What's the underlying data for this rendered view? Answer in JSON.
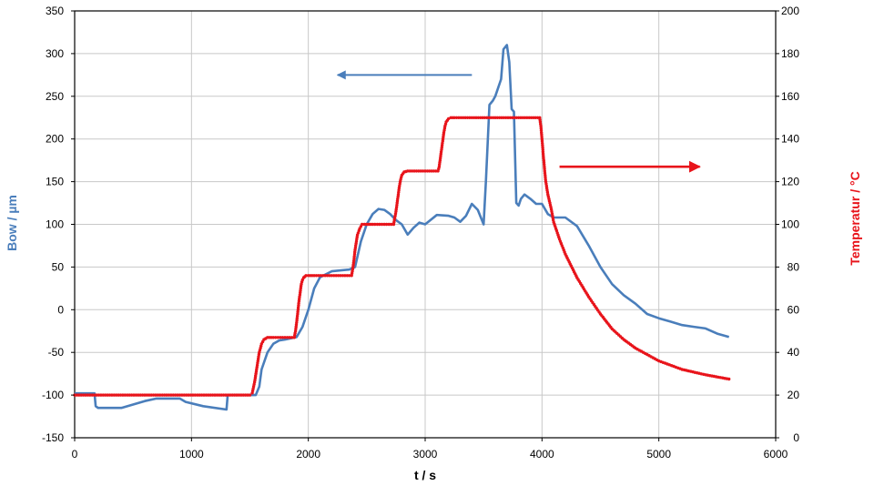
{
  "chart_data": {
    "type": "line",
    "title": "",
    "xlabel": "t / s",
    "ylabel": "Bow / µm",
    "y2label": "Temperatur / °C",
    "xlim": [
      0,
      6000
    ],
    "ylim": [
      -150,
      350
    ],
    "y2lim": [
      0,
      200
    ],
    "x_ticks": [
      0,
      1000,
      2000,
      3000,
      4000,
      5000,
      6000
    ],
    "y_ticks": [
      -150,
      -100,
      -50,
      0,
      50,
      100,
      150,
      200,
      250,
      300,
      350
    ],
    "y2_ticks": [
      0,
      20,
      40,
      60,
      80,
      100,
      120,
      140,
      160,
      180,
      200
    ],
    "grid": true,
    "legend": "none",
    "colors": {
      "bow": "#4a7ebb",
      "temperature": "#e8141b"
    },
    "annotations": [
      {
        "type": "arrow",
        "series": "bow",
        "direction": "left",
        "x_from": 3400,
        "x_to": 2250,
        "y": 275,
        "axis": "left"
      },
      {
        "type": "arrow",
        "series": "temperature",
        "direction": "right",
        "x_from": 4150,
        "x_to": 5350,
        "y": 127,
        "axis": "right"
      }
    ],
    "series": [
      {
        "axis": "left",
        "style": "line",
        "x": [
          0,
          170,
          180,
          200,
          400,
          600,
          700,
          900,
          950,
          1100,
          1300,
          1310,
          1320,
          1550,
          1580,
          1600,
          1650,
          1700,
          1750,
          1800,
          1900,
          1950,
          2000,
          2050,
          2100,
          2200,
          2350,
          2400,
          2450,
          2500,
          2550,
          2600,
          2650,
          2700,
          2750,
          2800,
          2850,
          2900,
          2950,
          3000,
          3100,
          3200,
          3250,
          3300,
          3350,
          3400,
          3450,
          3500,
          3520,
          3550,
          3580,
          3600,
          3650,
          3670,
          3700,
          3720,
          3740,
          3760,
          3780,
          3800,
          3820,
          3850,
          3900,
          3950,
          4000,
          4050,
          4100,
          4200,
          4300,
          4400,
          4500,
          4600,
          4700,
          4800,
          4900,
          5000,
          5100,
          5200,
          5300,
          5400,
          5500,
          5600
        ],
        "y": [
          -98,
          -98,
          -113,
          -115,
          -115,
          -107,
          -104,
          -104,
          -108,
          -113,
          -117,
          -100,
          -100,
          -100,
          -90,
          -70,
          -50,
          -40,
          -36,
          -35,
          -32,
          -20,
          0,
          25,
          38,
          45,
          47,
          50,
          80,
          100,
          112,
          118,
          117,
          112,
          105,
          100,
          88,
          96,
          102,
          100,
          111,
          110,
          108,
          103,
          110,
          124,
          117,
          100,
          150,
          240,
          245,
          250,
          270,
          305,
          310,
          290,
          235,
          232,
          125,
          122,
          130,
          135,
          130,
          124,
          124,
          112,
          108,
          108,
          98,
          75,
          50,
          30,
          17,
          7,
          -5,
          -10,
          -14,
          -18,
          -20,
          -22,
          -28,
          -32
        ]
      },
      {
        "axis": "right",
        "style": "markers",
        "x": [
          0,
          1500,
          1520,
          1540,
          1560,
          1580,
          1600,
          1620,
          1650,
          1700,
          1800,
          1880,
          1890,
          1900,
          1910,
          1920,
          1930,
          1940,
          1950,
          1960,
          1970,
          1980,
          2000,
          2050,
          2200,
          2370,
          2380,
          2390,
          2400,
          2420,
          2440,
          2460,
          2500,
          2550,
          2650,
          2730,
          2740,
          2750,
          2760,
          2770,
          2780,
          2790,
          2800,
          2820,
          2850,
          3000,
          3110,
          3120,
          3130,
          3140,
          3150,
          3160,
          3170,
          3180,
          3200,
          3220,
          3250,
          3400,
          3600,
          3800,
          3980,
          3990,
          4000,
          4010,
          4020,
          4030,
          4050,
          4080,
          4100,
          4150,
          4200,
          4300,
          4400,
          4500,
          4600,
          4700,
          4800,
          5000,
          5200,
          5400,
          5600
        ],
        "y": [
          20,
          20,
          21,
          26,
          33,
          40,
          44,
          46,
          47,
          47,
          47,
          47,
          50,
          54,
          59,
          64,
          68,
          72,
          74,
          75,
          75.5,
          76,
          76,
          76,
          76,
          76,
          79,
          83,
          88,
          95,
          98,
          100,
          100,
          100,
          100,
          100,
          103,
          106,
          110,
          114,
          118,
          121,
          123,
          124.5,
          125,
          125,
          125,
          127,
          131,
          135,
          139,
          143,
          146,
          148,
          149.5,
          150,
          150,
          150,
          150,
          150,
          150,
          146,
          140,
          133,
          127,
          121,
          114,
          107,
          101,
          93,
          86,
          75,
          66,
          58,
          51,
          46,
          42,
          36,
          32,
          29.5,
          27.5
        ]
      }
    ]
  }
}
